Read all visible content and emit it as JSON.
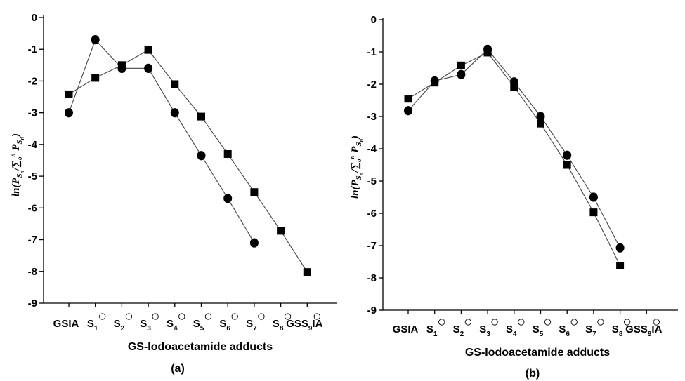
{
  "chart_data": [
    {
      "type": "line",
      "panel_label": "(a)",
      "xlabel": "GS-Iodoacetamide adducts",
      "ylabel": "ln(P_Sn/∑_o^n P_Sn)",
      "ylim": [
        -9,
        0
      ],
      "yticks": [
        "0",
        "-1",
        "-2",
        "-3",
        "-4",
        "-5",
        "-6",
        "-7",
        "-8",
        "-9"
      ],
      "categories": [
        {
          "main": "GSIA",
          "sub": ""
        },
        {
          "main": "S",
          "sub": "1"
        },
        {
          "main": "S",
          "sub": "2"
        },
        {
          "main": "S",
          "sub": "3"
        },
        {
          "main": "S",
          "sub": "4"
        },
        {
          "main": "S",
          "sub": "5"
        },
        {
          "main": "S",
          "sub": "6"
        },
        {
          "main": "S",
          "sub": "7"
        },
        {
          "main": "S",
          "sub": "8"
        },
        {
          "main": "GSS",
          "sub": "9",
          "suffix": "IA"
        }
      ],
      "series": [
        {
          "marker": "circle",
          "values": [
            -3.0,
            -0.7,
            -1.6,
            -1.6,
            -3.0,
            -4.35,
            -5.7,
            -7.1,
            null,
            null
          ]
        },
        {
          "marker": "square",
          "values": [
            -2.42,
            -1.9,
            -1.5,
            -1.02,
            -2.1,
            -3.12,
            -4.3,
            -5.5,
            -6.72,
            -8.02
          ]
        }
      ]
    },
    {
      "type": "line",
      "panel_label": "(b)",
      "xlabel": "GS-Iodoacetamide adducts",
      "ylabel": "ln(P_Sn/∑_o^n P_Sn)",
      "ylim": [
        -9,
        0
      ],
      "yticks": [
        "0",
        "-1",
        "-2",
        "-3",
        "-4",
        "-5",
        "-6",
        "-7",
        "-8",
        "-9"
      ],
      "categories": [
        {
          "main": "GSIA",
          "sub": ""
        },
        {
          "main": "S",
          "sub": "1"
        },
        {
          "main": "S",
          "sub": "2"
        },
        {
          "main": "S",
          "sub": "3"
        },
        {
          "main": "S",
          "sub": "4"
        },
        {
          "main": "S",
          "sub": "5"
        },
        {
          "main": "S",
          "sub": "6"
        },
        {
          "main": "S",
          "sub": "7"
        },
        {
          "main": "S",
          "sub": "8"
        },
        {
          "main": "GSS",
          "sub": "9",
          "suffix": "IA"
        }
      ],
      "series": [
        {
          "marker": "circle",
          "values": [
            -2.82,
            -1.9,
            -1.7,
            -0.92,
            -1.93,
            -3.0,
            -4.2,
            -5.5,
            -7.07,
            null
          ]
        },
        {
          "marker": "square",
          "values": [
            -2.45,
            -1.95,
            -1.42,
            -1.02,
            -2.08,
            -3.22,
            -4.5,
            -5.97,
            -7.62,
            null
          ]
        }
      ]
    }
  ]
}
